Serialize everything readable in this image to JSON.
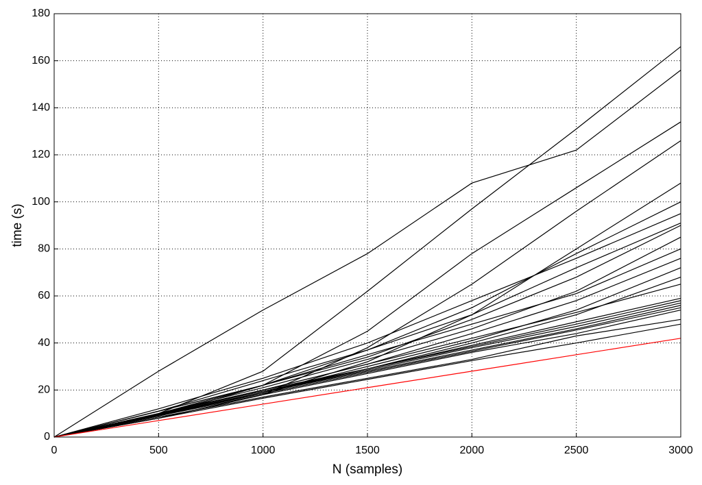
{
  "chart_data": {
    "type": "line",
    "xlabel": "N (samples)",
    "ylabel": "time (s)",
    "x": [
      0,
      500,
      1000,
      1500,
      2000,
      2500,
      3000
    ],
    "xlim": [
      0,
      3000
    ],
    "xticks": [
      0,
      500,
      1000,
      1500,
      2000,
      2500,
      3000
    ],
    "ylim": [
      0,
      180
    ],
    "yticks": [
      0,
      20,
      40,
      60,
      80,
      100,
      120,
      140,
      160,
      180
    ],
    "grid": true,
    "series": [
      {
        "color": "#000000",
        "values": [
          0,
          28,
          54,
          78,
          108,
          122,
          156
        ]
      },
      {
        "color": "#000000",
        "values": [
          0,
          10,
          28,
          62,
          97,
          131,
          166
        ]
      },
      {
        "color": "#000000",
        "values": [
          0,
          9,
          22,
          45,
          78,
          106,
          134
        ]
      },
      {
        "color": "#000000",
        "values": [
          0,
          8,
          18,
          38,
          65,
          96,
          126
        ]
      },
      {
        "color": "#000000",
        "values": [
          0,
          8,
          18,
          32,
          52,
          80,
          108
        ]
      },
      {
        "color": "#000000",
        "values": [
          0,
          11,
          22,
          37,
          55,
          78,
          100
        ]
      },
      {
        "color": "#000000",
        "values": [
          0,
          12,
          25,
          40,
          58,
          76,
          95
        ]
      },
      {
        "color": "#000000",
        "values": [
          0,
          11,
          24,
          37,
          52,
          72,
          91
        ]
      },
      {
        "color": "#000000",
        "values": [
          0,
          10,
          22,
          34,
          50,
          68,
          90
        ]
      },
      {
        "color": "#000000",
        "values": [
          0,
          10,
          21,
          33,
          46,
          62,
          85
        ]
      },
      {
        "color": "#000000",
        "values": [
          0,
          11,
          22,
          35,
          48,
          61,
          80
        ]
      },
      {
        "color": "#000000",
        "values": [
          0,
          10,
          20,
          31,
          44,
          58,
          76
        ]
      },
      {
        "color": "#000000",
        "values": [
          0,
          9,
          19,
          30,
          41,
          54,
          72
        ]
      },
      {
        "color": "#000000",
        "values": [
          0,
          9,
          19,
          29,
          40,
          52,
          68
        ]
      },
      {
        "color": "#000000",
        "values": [
          0,
          10,
          20,
          31,
          42,
          53,
          65
        ]
      },
      {
        "color": "#000000",
        "values": [
          0,
          10,
          20,
          29,
          39,
          49,
          59
        ]
      },
      {
        "color": "#000000",
        "values": [
          0,
          10,
          19.5,
          29,
          38.5,
          48,
          58
        ]
      },
      {
        "color": "#000000",
        "values": [
          0,
          9.8,
          19,
          28.5,
          38,
          47,
          57
        ]
      },
      {
        "color": "#000000",
        "values": [
          0,
          9.5,
          19,
          28,
          37,
          46,
          56
        ]
      },
      {
        "color": "#000000",
        "values": [
          0,
          9.3,
          18.5,
          27.5,
          36.5,
          45.5,
          55
        ]
      },
      {
        "color": "#000000",
        "values": [
          0,
          9,
          18,
          27,
          36,
          44,
          54
        ]
      },
      {
        "color": "#000000",
        "values": [
          0,
          8.5,
          17,
          25,
          33,
          43,
          50
        ]
      },
      {
        "color": "#000000",
        "values": [
          0,
          8,
          16.5,
          24.5,
          32.5,
          40,
          48
        ]
      },
      {
        "color": "#ff0000",
        "values": [
          0,
          7,
          14,
          21,
          28,
          35,
          42
        ]
      }
    ]
  }
}
